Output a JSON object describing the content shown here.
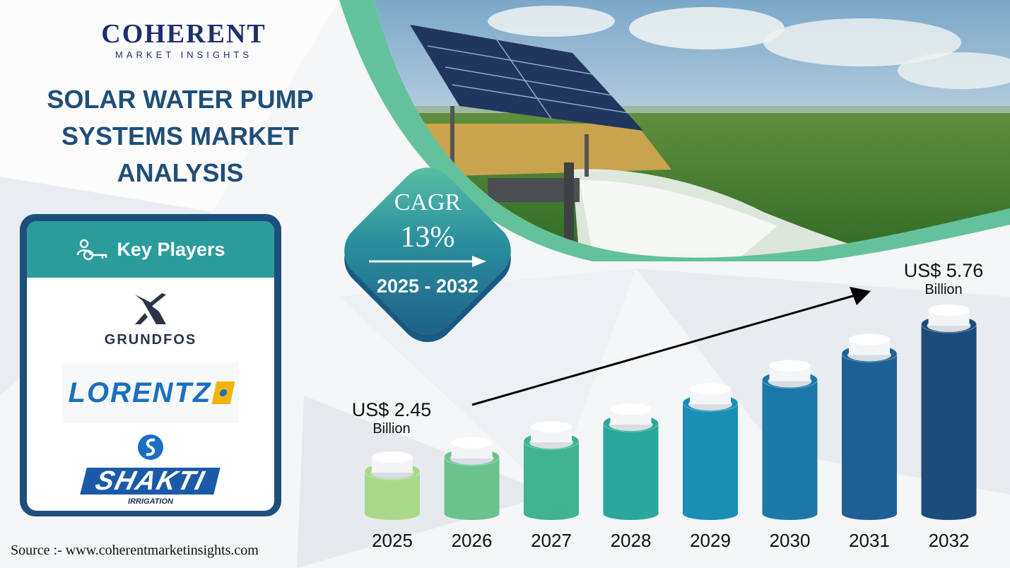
{
  "brand": {
    "name": "COHERENT",
    "tagline": "MARKET INSIGHTS"
  },
  "title_lines": [
    "SOLAR WATER PUMP",
    "SYSTEMS MARKET",
    "ANALYSIS"
  ],
  "key_players": {
    "heading": "Key Players",
    "companies": [
      {
        "name": "GRUNDFOS",
        "icon": "grundfos-logo"
      },
      {
        "name": "LORENTZ",
        "icon": "lorentz-logo"
      },
      {
        "name": "SHAKTI",
        "subtitle": "IRRIGATION",
        "icon": "shakti-logo"
      }
    ]
  },
  "cagr": {
    "label": "CAGR",
    "value": "13%",
    "period": "2025 - 2032"
  },
  "source": "Source :- www.coherentmarketinsights.com",
  "colors": {
    "title": "#1f4e79",
    "card_border": "#1c4f7c",
    "card_header": "#2a9c9c",
    "bar_colors": [
      "#a8d98a",
      "#6cc28c",
      "#3fb48e",
      "#2aa79a",
      "#1b8fb4",
      "#1b78a8",
      "#1f6196",
      "#1c4c7a"
    ]
  },
  "chart_data": {
    "type": "bar",
    "categories": [
      "2025",
      "2026",
      "2027",
      "2028",
      "2029",
      "2030",
      "2031",
      "2032"
    ],
    "values": [
      2.45,
      2.77,
      3.13,
      3.53,
      3.99,
      4.51,
      5.1,
      5.76
    ],
    "unit": "US$ Billion",
    "annotations": {
      "start": {
        "amount": "US$ 2.45",
        "unit": "Billion"
      },
      "end": {
        "amount": "US$ 5.76",
        "unit": "Billion"
      }
    }
  }
}
